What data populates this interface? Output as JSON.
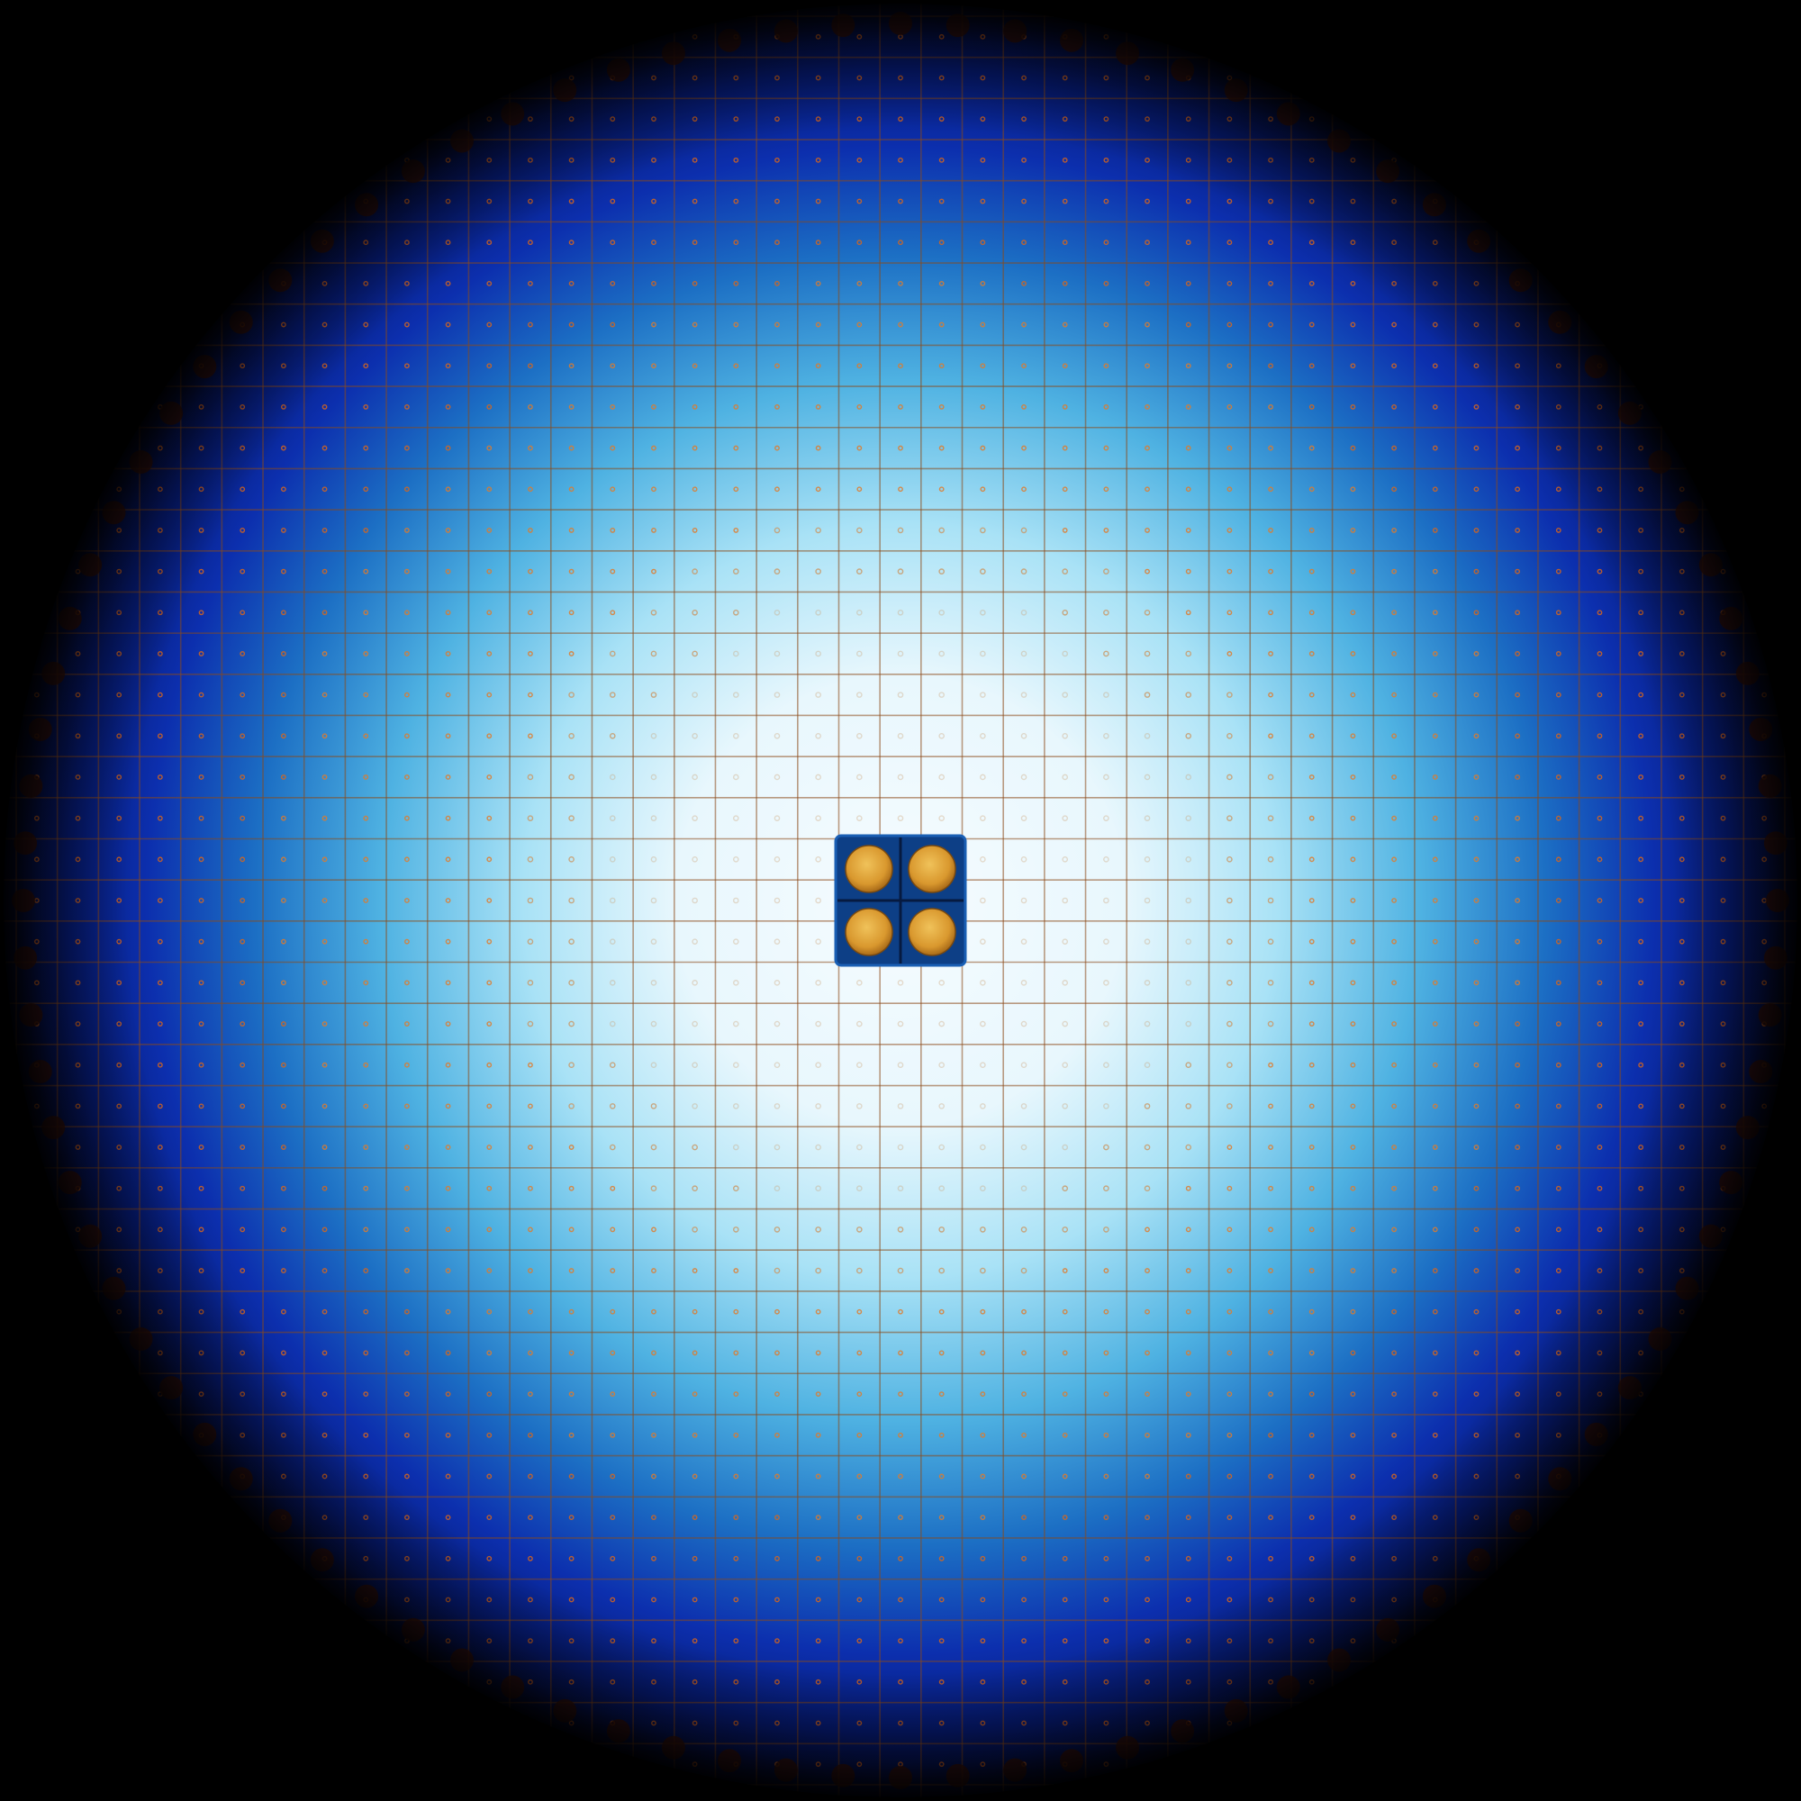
{
  "image": {
    "description_kind": "reactor-core-flux-visualization",
    "colors": {
      "background": "#000000",
      "center_glow": "#f4fbff",
      "mid_light": "#7fd3f2",
      "mid_blue": "#1d86c9",
      "deep_blue": "#0a2aa8",
      "edge_navy": "#020a4a",
      "hot_orange": "#d9661a",
      "fuel_gold": "#e0a43a",
      "cell_line": "#8c4a1a"
    },
    "grid": {
      "columns": 43,
      "rows": 43
    },
    "features": {
      "central_fuel_pins": 4,
      "peripheral_ring_dots": true,
      "cell_center_dots": true
    }
  }
}
